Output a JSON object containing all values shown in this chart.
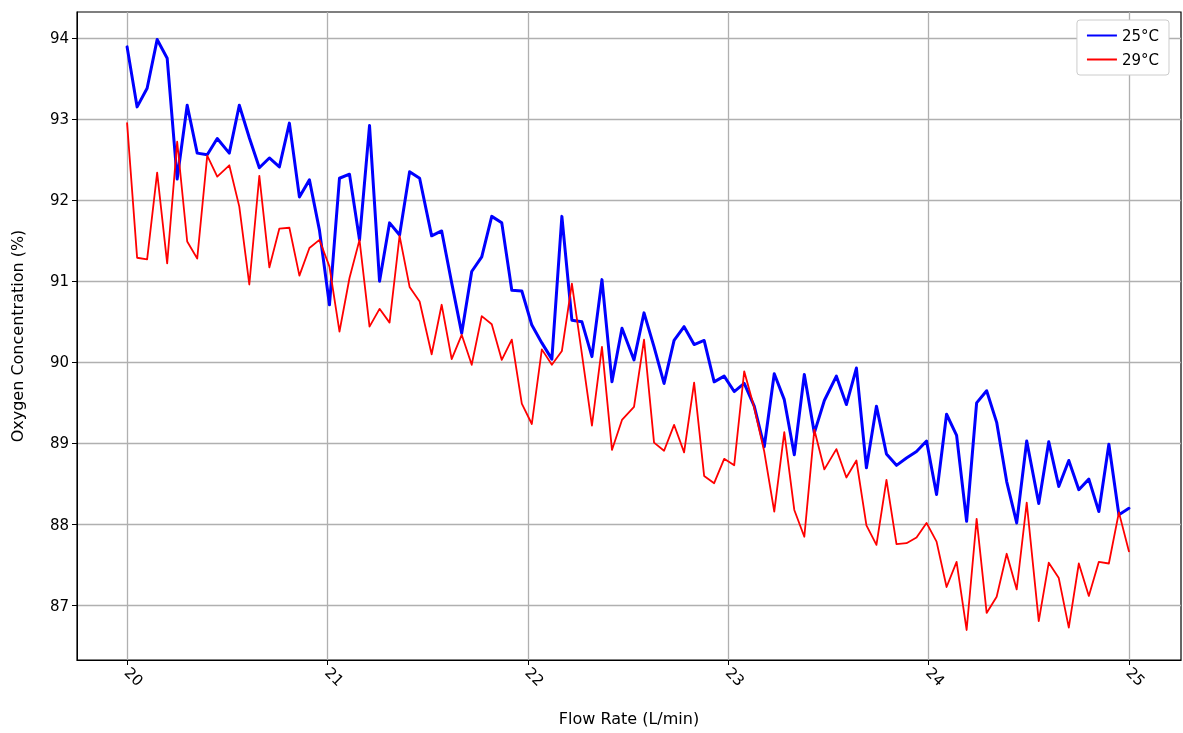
{
  "chart_data": {
    "type": "line",
    "xlabel": "Flow Rate (L/min)",
    "ylabel": "Oxygen Concentration (%)",
    "x": [
      20.0,
      20.05,
      20.1,
      20.15,
      20.2,
      20.25,
      20.3,
      20.35,
      20.4,
      20.45,
      20.51,
      20.56,
      20.61,
      20.66,
      20.71,
      20.76,
      20.81,
      20.86,
      20.91,
      20.96,
      21.01,
      21.06,
      21.11,
      21.16,
      21.21,
      21.26,
      21.31,
      21.36,
      21.41,
      21.46,
      21.52,
      21.57,
      21.62,
      21.67,
      21.72,
      21.77,
      21.82,
      21.87,
      21.92,
      21.97,
      22.02,
      22.07,
      22.12,
      22.17,
      22.22,
      22.27,
      22.32,
      22.37,
      22.42,
      22.47,
      22.53,
      22.58,
      22.63,
      22.68,
      22.73,
      22.78,
      22.83,
      22.88,
      22.93,
      22.98,
      23.03,
      23.08,
      23.13,
      23.18,
      23.23,
      23.28,
      23.33,
      23.38,
      23.43,
      23.48,
      23.54,
      23.59,
      23.64,
      23.69,
      23.74,
      23.79,
      23.84,
      23.89,
      23.94,
      23.99,
      24.04,
      24.09,
      24.14,
      24.19,
      24.24,
      24.29,
      24.34,
      24.39,
      24.44,
      24.49,
      24.55,
      24.6,
      24.65,
      24.7,
      24.75,
      24.8,
      24.85,
      24.9,
      24.95,
      25.0
    ],
    "series": [
      {
        "name": "25°C",
        "color": "#0000ff",
        "values": [
          93.89,
          93.15,
          93.38,
          93.98,
          93.75,
          92.26,
          93.17,
          92.58,
          92.56,
          92.76,
          92.58,
          93.17,
          92.77,
          92.4,
          92.52,
          92.41,
          92.95,
          92.04,
          92.25,
          91.63,
          90.71,
          92.27,
          92.32,
          91.51,
          92.92,
          91.0,
          91.72,
          91.57,
          92.35,
          92.27,
          91.56,
          91.62,
          90.98,
          90.36,
          91.12,
          91.3,
          91.8,
          91.72,
          90.89,
          90.88,
          90.46,
          90.24,
          90.04,
          91.8,
          90.52,
          90.5,
          90.07,
          91.02,
          89.76,
          90.42,
          90.03,
          90.61,
          90.19,
          89.74,
          90.27,
          90.44,
          90.22,
          90.27,
          89.76,
          89.83,
          89.64,
          89.74,
          89.46,
          88.96,
          89.86,
          89.54,
          88.86,
          89.85,
          89.13,
          89.53,
          89.83,
          89.48,
          89.93,
          88.7,
          89.46,
          88.87,
          88.73,
          88.82,
          88.9,
          89.03,
          88.37,
          89.36,
          89.1,
          88.04,
          89.5,
          89.65,
          89.26,
          88.53,
          88.02,
          89.03,
          88.26,
          89.02,
          88.47,
          88.79,
          88.43,
          88.56,
          88.16,
          88.99,
          88.12,
          88.2
        ]
      },
      {
        "name": "29°C",
        "color": "#ff0000",
        "values": [
          92.95,
          91.29,
          91.27,
          92.34,
          91.22,
          92.72,
          91.49,
          91.28,
          92.55,
          92.29,
          92.43,
          91.92,
          90.96,
          92.3,
          91.17,
          91.65,
          91.66,
          91.07,
          91.41,
          91.51,
          91.18,
          90.38,
          91.04,
          91.51,
          90.44,
          90.66,
          90.49,
          91.56,
          90.93,
          90.75,
          90.1,
          90.71,
          90.04,
          90.34,
          89.97,
          90.57,
          90.47,
          90.03,
          90.28,
          89.49,
          89.24,
          90.16,
          89.97,
          90.14,
          90.97,
          90.1,
          89.22,
          90.19,
          88.92,
          89.29,
          89.45,
          90.28,
          89.01,
          88.91,
          89.23,
          88.89,
          89.75,
          88.6,
          88.51,
          88.81,
          88.73,
          89.89,
          89.44,
          88.9,
          88.16,
          89.14,
          88.18,
          87.85,
          89.17,
          88.68,
          88.93,
          88.58,
          88.79,
          87.99,
          87.75,
          88.55,
          87.76,
          87.77,
          87.84,
          88.02,
          87.79,
          87.23,
          87.54,
          86.7,
          88.07,
          86.91,
          87.11,
          87.64,
          87.2,
          88.27,
          86.81,
          87.53,
          87.34,
          86.73,
          87.52,
          87.12,
          87.54,
          87.52,
          88.15,
          87.67
        ]
      }
    ],
    "xlim": [
      19.75,
      25.26
    ],
    "xticks": [
      20,
      21,
      22,
      23,
      24,
      25
    ],
    "ylim": [
      86.33,
      94.32
    ],
    "yticks": [
      87,
      88,
      89,
      90,
      91,
      92,
      93,
      94
    ],
    "grid": true,
    "legend": "top right",
    "marker": "none",
    "line_style": "solid"
  }
}
